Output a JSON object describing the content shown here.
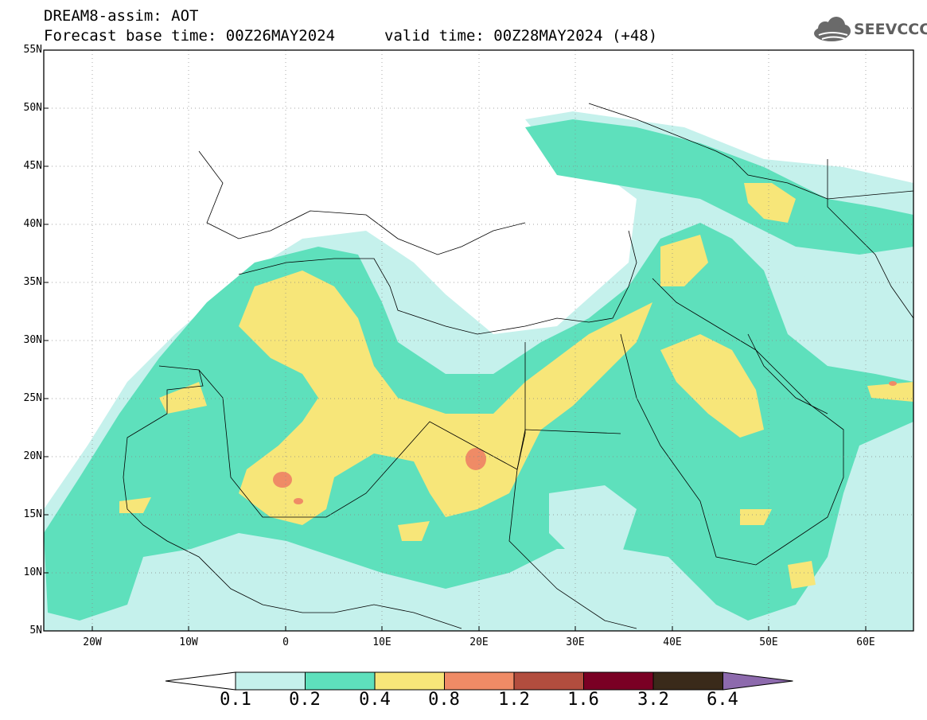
{
  "header": {
    "model_line": "DREAM8-assim: AOT",
    "base_time_line": "Forecast base time: 00Z26MAY2024",
    "valid_time_line": "valid time: 00Z28MAY2024 (+48)",
    "logo_text": "SEEVCCC",
    "logo_icon": "cloud-icon"
  },
  "map": {
    "lat_labels": [
      "55N",
      "50N",
      "45N",
      "40N",
      "35N",
      "30N",
      "25N",
      "20N",
      "15N",
      "10N",
      "5N"
    ],
    "lon_labels": [
      "20W",
      "10W",
      "0",
      "10E",
      "20E",
      "30E",
      "40E",
      "50E",
      "60E"
    ],
    "lon_range": [
      -25,
      65
    ],
    "lat_range": [
      5,
      55
    ],
    "gridlines": "dotted"
  },
  "colorbar": {
    "levels": [
      "0.1",
      "0.2",
      "0.4",
      "0.8",
      "1.2",
      "1.6",
      "3.2",
      "6.4"
    ],
    "colors": [
      "#ffffff",
      "#c5f1ec",
      "#5ee0bc",
      "#f7e679",
      "#ef8b66",
      "#b24d3e",
      "#7a0024",
      "#3a2a1a",
      "#8d6aad"
    ]
  }
}
